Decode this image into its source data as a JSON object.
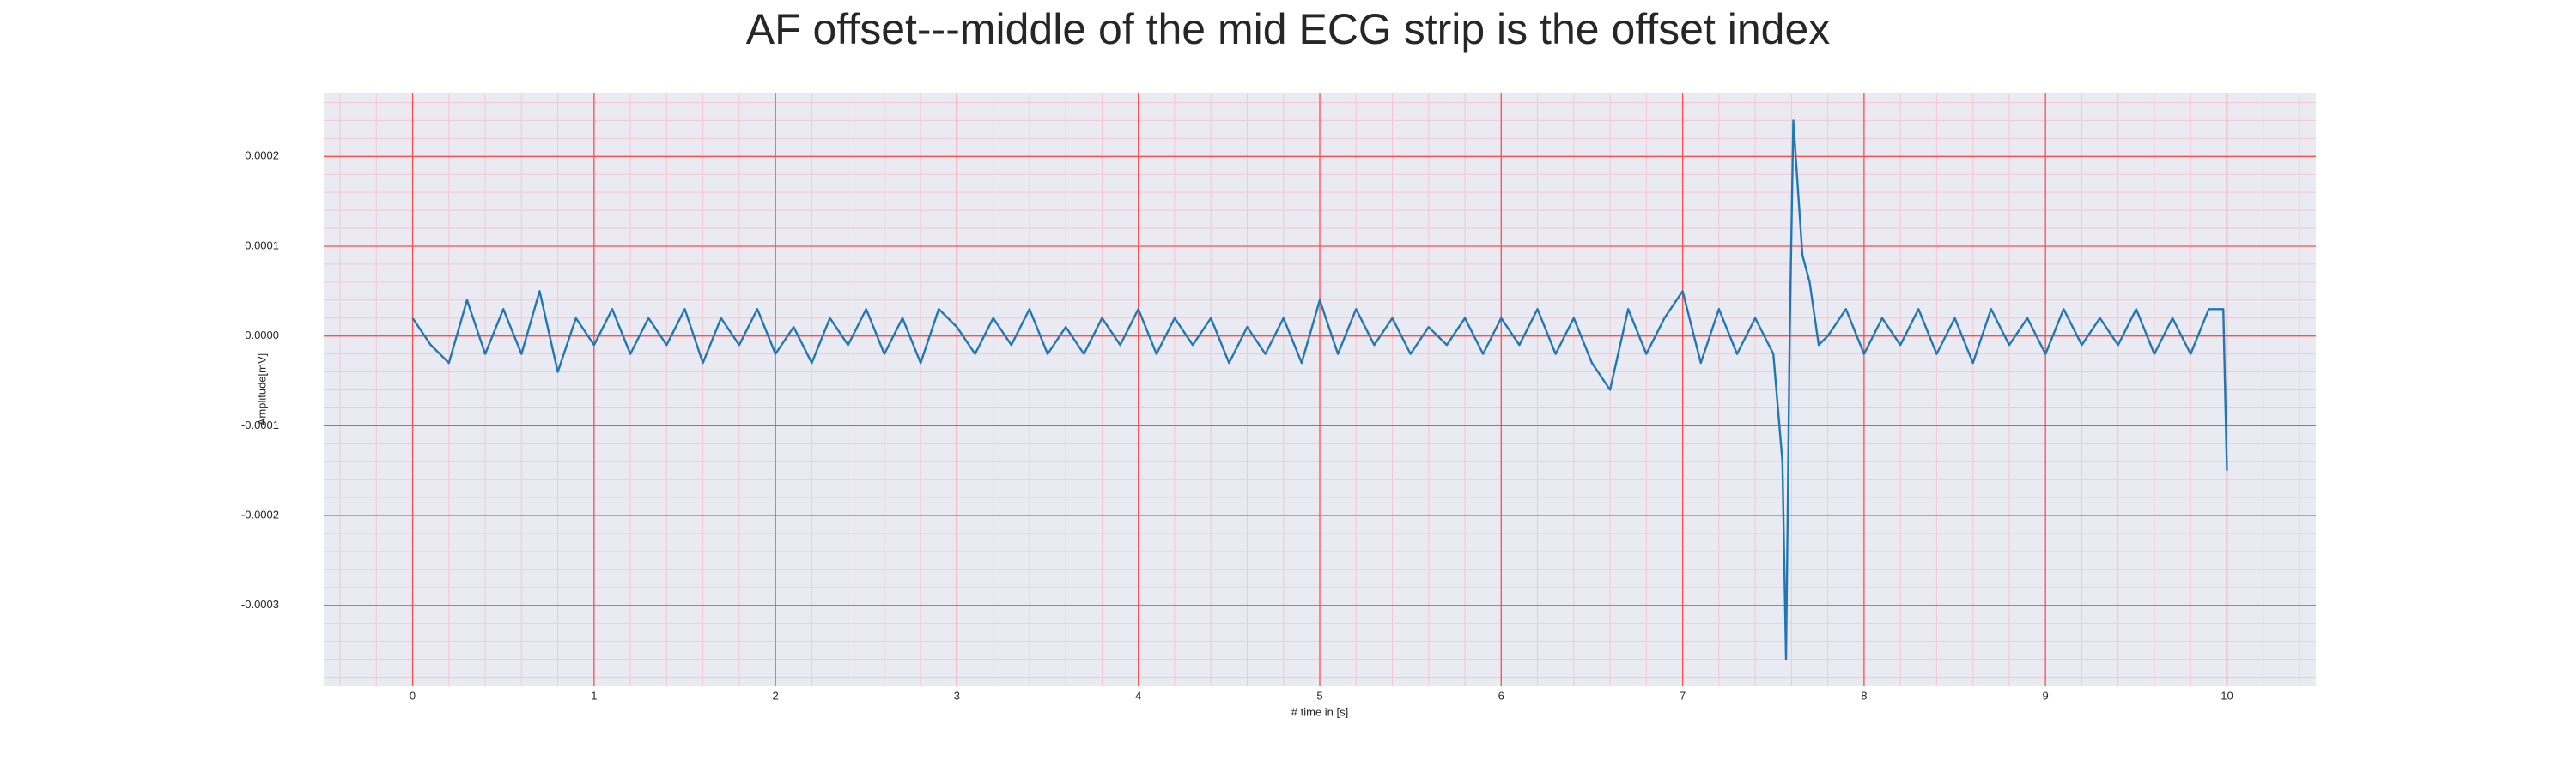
{
  "chart_data": {
    "type": "line",
    "title": "AF offset---middle of the mid ECG strip is the offset index",
    "xlabel": "# time in [s]",
    "ylabel": "Amplitude[mV]",
    "color": "#1f77b4",
    "background": "#eaeaf2",
    "grid": true,
    "grid_color": "#ff4d4d",
    "minor_grid": true,
    "minor_grid_color": "#f7c6d2",
    "xlim": [
      -0.49,
      10.49
    ],
    "ylim": [
      -0.00039,
      0.00027
    ],
    "xticks": [
      0,
      1,
      2,
      3,
      4,
      5,
      6,
      7,
      8,
      9,
      10
    ],
    "yticks": [
      0.0002,
      0.0001,
      {
        "value": 0,
        "label": "0.0000"
      },
      -0.0001,
      -0.0002,
      -0.0003
    ],
    "x": [
      0,
      0.1,
      0.2,
      0.3,
      0.4,
      0.5,
      0.6,
      0.7,
      0.8,
      0.9,
      1.0,
      1.1,
      1.2,
      1.3,
      1.4,
      1.5,
      1.6,
      1.7,
      1.8,
      1.9,
      2.0,
      2.1,
      2.2,
      2.3,
      2.4,
      2.5,
      2.6,
      2.7,
      2.8,
      2.9,
      3.0,
      3.1,
      3.2,
      3.3,
      3.4,
      3.5,
      3.6,
      3.7,
      3.8,
      3.9,
      4.0,
      4.1,
      4.2,
      4.3,
      4.4,
      4.5,
      4.6,
      4.7,
      4.8,
      4.9,
      5.0,
      5.1,
      5.2,
      5.3,
      5.4,
      5.5,
      5.6,
      5.7,
      5.8,
      5.9,
      6.0,
      6.1,
      6.2,
      6.3,
      6.4,
      6.5,
      6.6,
      6.7,
      6.8,
      6.9,
      7.0,
      7.1,
      7.2,
      7.3,
      7.4,
      7.5,
      7.55,
      7.57,
      7.59,
      7.61,
      7.63,
      7.66,
      7.7,
      7.75,
      7.8,
      7.9,
      8.0,
      8.1,
      8.2,
      8.3,
      8.4,
      8.5,
      8.6,
      8.7,
      8.8,
      8.9,
      9.0,
      9.1,
      9.2,
      9.3,
      9.4,
      9.5,
      9.6,
      9.7,
      9.8,
      9.9,
      9.98,
      10.0
    ],
    "values": [
      2e-05,
      -1e-05,
      -3e-05,
      4e-05,
      -2e-05,
      3e-05,
      -2e-05,
      5e-05,
      -4e-05,
      2e-05,
      -1e-05,
      3e-05,
      -2e-05,
      2e-05,
      -1e-05,
      3e-05,
      -3e-05,
      2e-05,
      -1e-05,
      3e-05,
      -2e-05,
      1e-05,
      -3e-05,
      2e-05,
      -1e-05,
      3e-05,
      -2e-05,
      2e-05,
      -3e-05,
      3e-05,
      1e-05,
      -2e-05,
      2e-05,
      -1e-05,
      3e-05,
      -2e-05,
      1e-05,
      -2e-05,
      2e-05,
      -1e-05,
      3e-05,
      -2e-05,
      2e-05,
      -1e-05,
      2e-05,
      -3e-05,
      1e-05,
      -2e-05,
      2e-05,
      -3e-05,
      4e-05,
      -2e-05,
      3e-05,
      -1e-05,
      2e-05,
      -2e-05,
      1e-05,
      -1e-05,
      2e-05,
      -2e-05,
      2e-05,
      -1e-05,
      3e-05,
      -2e-05,
      2e-05,
      -3e-05,
      -6e-05,
      3e-05,
      -2e-05,
      2e-05,
      5e-05,
      -3e-05,
      3e-05,
      -2e-05,
      2e-05,
      -2e-05,
      -0.00014,
      -0.00036,
      0,
      0.00024,
      0.00018,
      9e-05,
      6e-05,
      -1e-05,
      0,
      3e-05,
      -2e-05,
      2e-05,
      -1e-05,
      3e-05,
      -2e-05,
      2e-05,
      -3e-05,
      3e-05,
      -1e-05,
      2e-05,
      -2e-05,
      3e-05,
      -1e-05,
      2e-05,
      -1e-05,
      3e-05,
      -2e-05,
      2e-05,
      -2e-05,
      3e-05,
      3e-05,
      -0.00015
    ]
  }
}
